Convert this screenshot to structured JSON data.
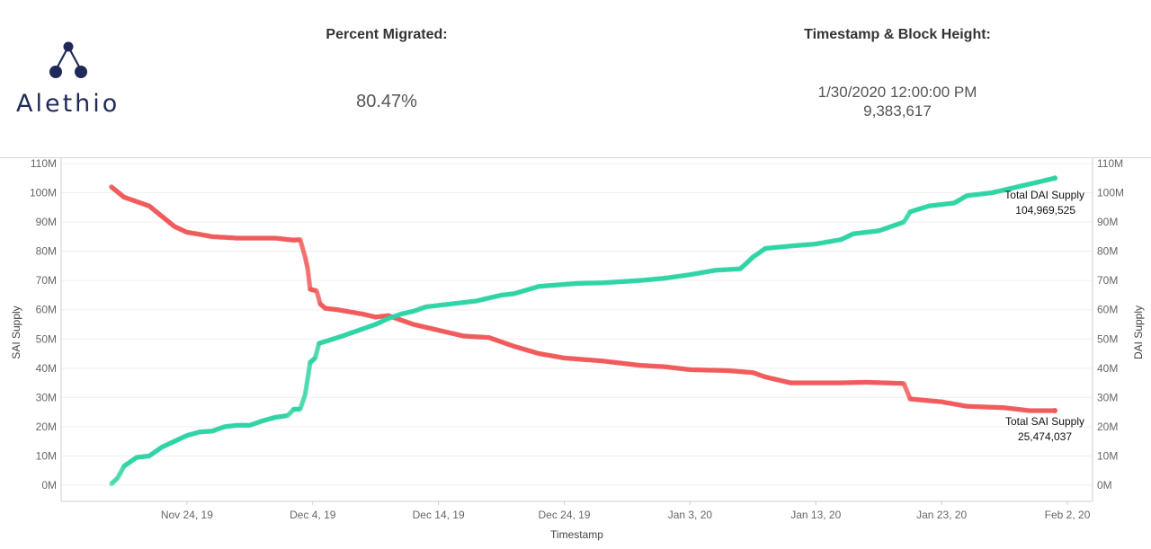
{
  "header": {
    "logo_text": "Alethio",
    "percent_label": "Percent Migrated:",
    "percent_value": "80.47%",
    "timestamp_label": "Timestamp & Block Height:",
    "timestamp_value": "1/30/2020 12:00:00 PM",
    "block_height": "9,383,617"
  },
  "colors": {
    "dai": "#2ed3a4",
    "sai": "#f0595a",
    "logo": "#1f2a5a"
  },
  "chart_data": {
    "type": "scatter",
    "xlabel": "Timestamp",
    "ylabel": "SAI Supply",
    "y2label": "DAI Supply",
    "x_ticks": [
      "Nov 24, 19",
      "Dec 4, 19",
      "Dec 14, 19",
      "Dec 24, 19",
      "Jan 3, 20",
      "Jan 13, 20",
      "Jan 23, 20",
      "Feb 2, 20"
    ],
    "y_ticks": [
      "0M",
      "10M",
      "20M",
      "30M",
      "40M",
      "50M",
      "60M",
      "70M",
      "80M",
      "90M",
      "100M",
      "110M"
    ],
    "xlim": [
      "2019-11-14",
      "2020-02-04"
    ],
    "ylim": [
      0,
      110
    ],
    "y_unit": "M",
    "grid": true,
    "series": [
      {
        "name": "Total SAI Supply",
        "final_value": "25,474,037",
        "points": [
          [
            "2019-11-18",
            102
          ],
          [
            "2019-11-19",
            98.5
          ],
          [
            "2019-11-20",
            97
          ],
          [
            "2019-11-21",
            95.5
          ],
          [
            "2019-11-22",
            92
          ],
          [
            "2019-11-23",
            88.5
          ],
          [
            "2019-11-24",
            86.5
          ],
          [
            "2019-11-25",
            85.8
          ],
          [
            "2019-11-26",
            85
          ],
          [
            "2019-11-28",
            84.5
          ],
          [
            "2019-11-30",
            84.5
          ],
          [
            "2019-12-01",
            84.5
          ],
          [
            "2019-12-02.5",
            83.8
          ],
          [
            "2019-12-03",
            84
          ],
          [
            "2019-12-03.4",
            78
          ],
          [
            "2019-12-03.6",
            74
          ],
          [
            "2019-12-03.8",
            67
          ],
          [
            "2019-12-04.3",
            66.5
          ],
          [
            "2019-12-04.6",
            62
          ],
          [
            "2019-12-05",
            60.5
          ],
          [
            "2019-12-06",
            60
          ],
          [
            "2019-12-08",
            58.5
          ],
          [
            "2019-12-09",
            57.5
          ],
          [
            "2019-12-10",
            58
          ],
          [
            "2019-12-12",
            55
          ],
          [
            "2019-12-14",
            53
          ],
          [
            "2019-12-16",
            51
          ],
          [
            "2019-12-18",
            50.5
          ],
          [
            "2019-12-20",
            47.5
          ],
          [
            "2019-12-22",
            45
          ],
          [
            "2019-12-24",
            43.5
          ],
          [
            "2019-12-27",
            42.5
          ],
          [
            "2019-12-30",
            41
          ],
          [
            "2020-01-01",
            40.5
          ],
          [
            "2020-01-03",
            39.5
          ],
          [
            "2020-01-06",
            39.2
          ],
          [
            "2020-01-08",
            38.5
          ],
          [
            "2020-01-09",
            37
          ],
          [
            "2020-01-10",
            36
          ],
          [
            "2020-01-11",
            35
          ],
          [
            "2020-01-15",
            35
          ],
          [
            "2020-01-17",
            35.2
          ],
          [
            "2020-01-20",
            34.8
          ],
          [
            "2020-01-20.5",
            29.5
          ],
          [
            "2020-01-23",
            28.5
          ],
          [
            "2020-01-25",
            27
          ],
          [
            "2020-01-28",
            26.5
          ],
          [
            "2020-01-30",
            25.5
          ],
          [
            "2020-02-01",
            25.5
          ]
        ]
      },
      {
        "name": "Total DAI Supply",
        "final_value": "104,969,525",
        "points": [
          [
            "2019-11-18",
            0.5
          ],
          [
            "2019-11-18.5",
            2.5
          ],
          [
            "2019-11-19",
            6.5
          ],
          [
            "2019-11-20",
            9.5
          ],
          [
            "2019-11-21",
            10
          ],
          [
            "2019-11-22",
            13
          ],
          [
            "2019-11-23",
            15
          ],
          [
            "2019-11-24",
            17
          ],
          [
            "2019-11-25",
            18.2
          ],
          [
            "2019-11-26",
            18.5
          ],
          [
            "2019-11-27",
            20
          ],
          [
            "2019-11-28",
            20.5
          ],
          [
            "2019-11-29",
            20.5
          ],
          [
            "2019-11-30",
            22
          ],
          [
            "2019-12-01",
            23.2
          ],
          [
            "2019-12-02",
            23.8
          ],
          [
            "2019-12-02.5",
            26
          ],
          [
            "2019-12-03",
            26
          ],
          [
            "2019-12-03.4",
            31
          ],
          [
            "2019-12-03.8",
            42
          ],
          [
            "2019-12-04.2",
            43.5
          ],
          [
            "2019-12-04.5",
            48.5
          ],
          [
            "2019-12-06",
            50.5
          ],
          [
            "2019-12-08",
            53.5
          ],
          [
            "2019-12-09",
            55
          ],
          [
            "2019-12-10",
            57
          ],
          [
            "2019-12-11",
            58.5
          ],
          [
            "2019-12-12",
            59.5
          ],
          [
            "2019-12-13",
            61
          ],
          [
            "2019-12-15",
            62
          ],
          [
            "2019-12-17",
            63
          ],
          [
            "2019-12-19",
            65
          ],
          [
            "2019-12-20",
            65.5
          ],
          [
            "2019-12-22",
            68
          ],
          [
            "2019-12-25",
            69
          ],
          [
            "2019-12-27",
            69.2
          ],
          [
            "2019-12-30",
            70
          ],
          [
            "2020-01-01",
            70.8
          ],
          [
            "2020-01-03",
            72
          ],
          [
            "2020-01-05",
            73.5
          ],
          [
            "2020-01-07",
            74
          ],
          [
            "2020-01-08",
            78
          ],
          [
            "2020-01-09",
            81
          ],
          [
            "2020-01-11",
            81.8
          ],
          [
            "2020-01-13",
            82.5
          ],
          [
            "2020-01-15",
            84
          ],
          [
            "2020-01-16",
            86
          ],
          [
            "2020-01-18",
            87
          ],
          [
            "2020-01-20",
            90
          ],
          [
            "2020-01-20.5",
            93.5
          ],
          [
            "2020-01-22",
            95.5
          ],
          [
            "2020-01-24",
            96.5
          ],
          [
            "2020-01-25",
            99
          ],
          [
            "2020-01-27",
            100
          ],
          [
            "2020-01-29",
            102
          ],
          [
            "2020-01-31",
            104
          ],
          [
            "2020-02-01",
            105
          ]
        ]
      }
    ]
  }
}
